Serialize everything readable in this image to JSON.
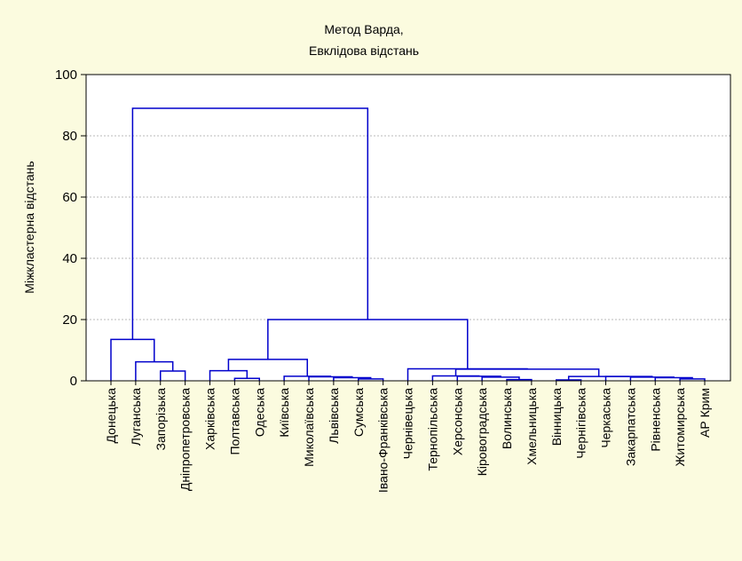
{
  "chart_data": {
    "type": "dendrogram",
    "title_lines": [
      "Метод Варда,",
      "Евклідова відстань"
    ],
    "ylabel": "Міжкластерна відстань",
    "xlabel": "",
    "ylim": [
      0,
      100
    ],
    "yticks": [
      0,
      20,
      40,
      60,
      80,
      100
    ],
    "grid": true,
    "leaves": [
      "Донецька",
      "Луганська",
      "Запорізька",
      "Дніпропетровська",
      "Харківська",
      "Полтавська",
      "Одеська",
      "Київська",
      "Миколаївська",
      "Львівська",
      "Сумська",
      "Івано-Франківська",
      "Чернівецька",
      "Тернопільська",
      "Херсонська",
      "Кіровоградська",
      "Волинська",
      "Хмельницька",
      "Вінницька",
      "Чернігівська",
      "Черкаська",
      "Закарпатська",
      "Рівненська",
      "Житомирська",
      "АР Крим"
    ],
    "merges": [
      {
        "a": "Запорізька",
        "b": "Дніпропетровська",
        "height": 3.2
      },
      {
        "a": "Луганська",
        "b": "(Запорізька, Дніпропетровська)",
        "height": 6.2
      },
      {
        "a": "Донецька",
        "b": "(Луганська, Запорізька, Дніпропетровська)",
        "height": 13.5
      },
      {
        "a": "Полтавська",
        "b": "Одеська",
        "height": 0.8
      },
      {
        "a": "Харківська",
        "b": "(Полтавська, Одеська)",
        "height": 3.3
      },
      {
        "a": "Сумська",
        "b": "Івано-Франківська",
        "height": 0.6
      },
      {
        "a": "Львівська",
        "b": "(Сумська, Івано-Франківська)",
        "height": 1.0
      },
      {
        "a": "Миколаївська",
        "b": "(Львівська, Сумська, Івано-Франківська)",
        "height": 1.3
      },
      {
        "a": "Київська",
        "b": "(Миколаївська, Львівська, Сумська, Івано-Франківська)",
        "height": 1.5
      },
      {
        "a": "(Харківська, Полтавська, Одеська)",
        "b": "(Київська … Івано-Франківська)",
        "height": 7.0
      },
      {
        "a": "Волинська",
        "b": "Хмельницька",
        "height": 0.4
      },
      {
        "a": "Кіровоградська",
        "b": "(Волинська, Хмельницька)",
        "height": 1.2
      },
      {
        "a": "Херсонська",
        "b": "(Кіровоградська, Волинська, Хмельницька)",
        "height": 1.5
      },
      {
        "a": "Тернопільська",
        "b": "(Херсонська … Хмельницька)",
        "height": 1.6
      },
      {
        "a": "Вінницька",
        "b": "Чернігівська",
        "height": 0.3
      },
      {
        "a": "Житомирська",
        "b": "АР Крим",
        "height": 0.6
      },
      {
        "a": "Рівненська",
        "b": "(Житомирська, АР Крим)",
        "height": 1.0
      },
      {
        "a": "Закарпатська",
        "b": "(Рівненська, Житомирська, АР Крим)",
        "height": 1.2
      },
      {
        "a": "Черкаська",
        "b": "(Закарпатська … АР Крим)",
        "height": 1.4
      },
      {
        "a": "(Вінницька, Чернігівська)",
        "b": "(Черкаська … АР Крим)",
        "height": 1.4
      },
      {
        "a": "(Тернопільська … Хмельницька)",
        "b": "(Вінницька … АР Крим)",
        "height": 3.8
      },
      {
        "a": "Чернівецька",
        "b": "(Тернопільська … АР Крим)",
        "height": 3.9
      },
      {
        "a": "(Харківська … Івано-Франківська)",
        "b": "(Чернівецька … АР Крим)",
        "height": 20.0
      },
      {
        "a": "(Донецька … Дніпропетровська)",
        "b": "(Харківська … АР Крим)",
        "height": 89.0
      }
    ],
    "colors": {
      "background": "#fbfbdf",
      "plot_background": "#ffffff",
      "line": "#0000cc",
      "grid": "#b8b8b8",
      "axis": "#000000"
    }
  }
}
